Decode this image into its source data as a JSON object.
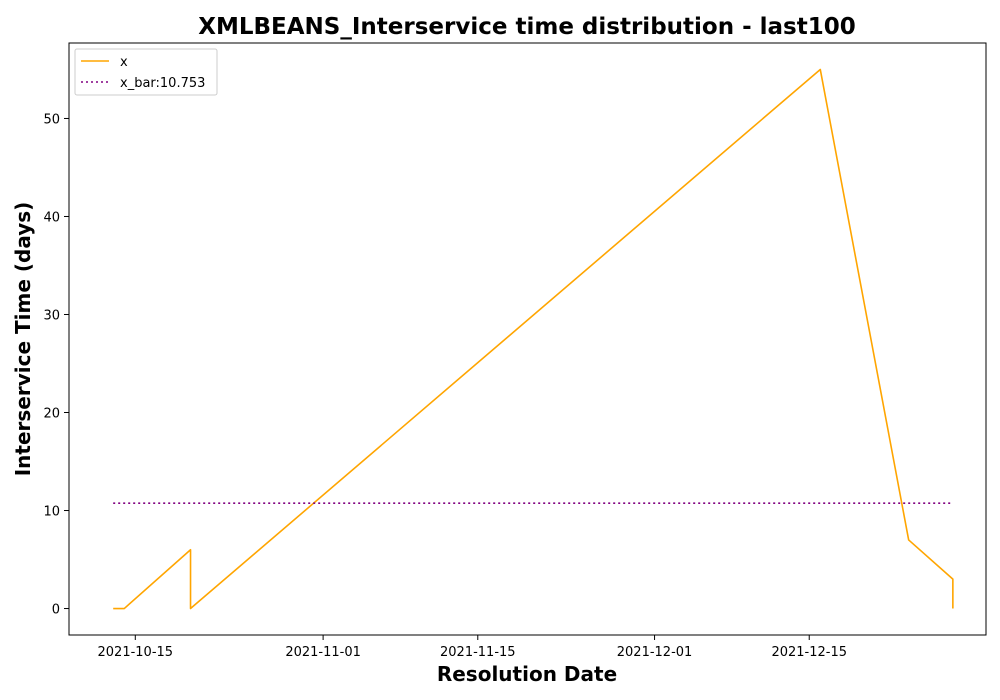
{
  "chart_data": {
    "type": "line",
    "title": "XMLBEANS_Interservice time distribution - last100",
    "xlabel": "Resolution Date",
    "ylabel": "Interservice Time (days)",
    "x_tick_labels": [
      "2021-10-15",
      "2021-11-01",
      "2021-11-15",
      "2021-12-01",
      "2021-12-15"
    ],
    "y_tick_labels": [
      "0",
      "10",
      "20",
      "30",
      "40",
      "50"
    ],
    "xlim": [
      "2021-10-09",
      "2021-12-31"
    ],
    "ylim": [
      -2.7,
      57.7
    ],
    "grid": false,
    "legend_position": "upper-left",
    "series": [
      {
        "name": "x",
        "color": "#ffa500",
        "style": "solid",
        "points": [
          {
            "x": "2021-10-13",
            "y": 0
          },
          {
            "x": "2021-10-14",
            "y": 0
          },
          {
            "x": "2021-10-20",
            "y": 6
          },
          {
            "x": "2021-10-20",
            "y": 0
          },
          {
            "x": "2021-12-16",
            "y": 55
          },
          {
            "x": "2021-12-24",
            "y": 7
          },
          {
            "x": "2021-12-28",
            "y": 3
          },
          {
            "x": "2021-12-28",
            "y": 0
          }
        ]
      },
      {
        "name": "x_bar:10.753",
        "color": "#800080",
        "style": "dotted",
        "points": [
          {
            "x": "2021-10-13",
            "y": 10.753
          },
          {
            "x": "2021-12-28",
            "y": 10.753
          }
        ]
      }
    ]
  }
}
